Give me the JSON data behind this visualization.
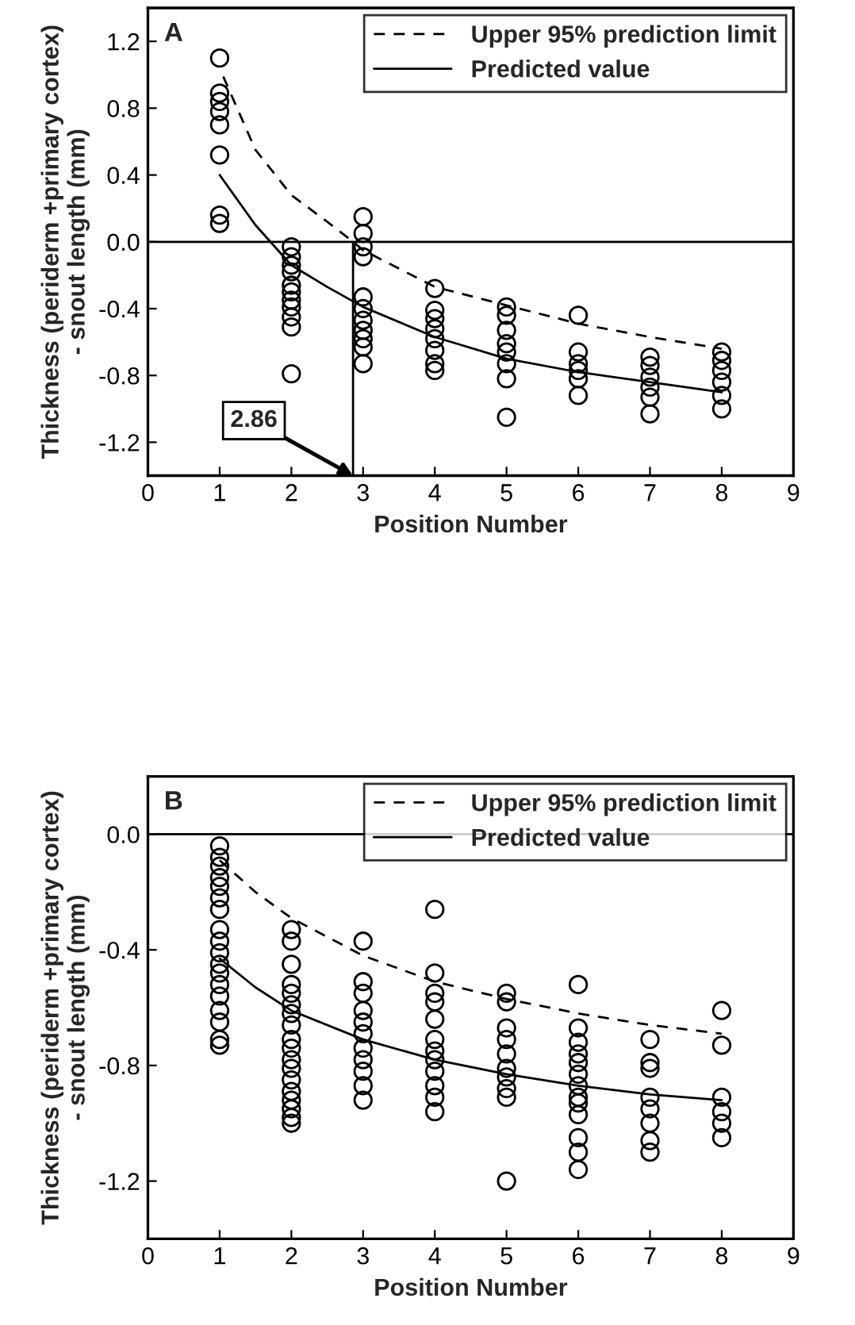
{
  "chart_data": [
    {
      "type": "scatter",
      "xlabel": "Position Number",
      "ylabel": "Thickness (periderm +primary cortex)\n- snout length (mm)",
      "xlim": [
        0,
        9
      ],
      "xticks": [
        0,
        1,
        2,
        3,
        4,
        5,
        6,
        7,
        8,
        9
      ],
      "ylim": [
        -1.4,
        1.4
      ],
      "yticks": [
        -1.2,
        -0.8,
        -0.4,
        {
          "value": 0,
          "label": "0.0"
        },
        0.4,
        0.8,
        1.2
      ],
      "legend": "top right",
      "grid": false,
      "annotations": [
        "A",
        {
          "text": "2.86",
          "x": 2.86,
          "y": -1.4
        }
      ],
      "ref_lines": [
        {
          "axis": "y",
          "value": 0,
          "label": null,
          "color": "#000000"
        },
        {
          "axis": "x",
          "value": 2.86,
          "label": null,
          "color": "#000000"
        }
      ],
      "series": [
        {
          "marker": "circle",
          "color": "#000000",
          "x": [
            1,
            1,
            1,
            1,
            1,
            1,
            1,
            1,
            2,
            2,
            2,
            2,
            2,
            2,
            2,
            2,
            2,
            2,
            2,
            3,
            3,
            3,
            3,
            3,
            3,
            3,
            3,
            3,
            3,
            3,
            4,
            4,
            4,
            4,
            4,
            4,
            4,
            4,
            5,
            5,
            5,
            5,
            5,
            5,
            5,
            5,
            6,
            6,
            6,
            6,
            6,
            6,
            7,
            7,
            7,
            7,
            7,
            7,
            8,
            8,
            8,
            8,
            8,
            8
          ],
          "values": [
            1.1,
            0.89,
            0.84,
            0.78,
            0.7,
            0.52,
            0.16,
            0.11,
            -0.03,
            -0.09,
            -0.14,
            -0.18,
            -0.26,
            -0.3,
            -0.35,
            -0.39,
            -0.45,
            -0.51,
            -0.79,
            0.15,
            0.05,
            -0.03,
            -0.09,
            -0.33,
            -0.4,
            -0.47,
            -0.53,
            -0.58,
            -0.63,
            -0.73,
            -0.28,
            -0.41,
            -0.46,
            -0.52,
            -0.58,
            -0.65,
            -0.73,
            -0.77,
            -0.39,
            -0.44,
            -0.53,
            -0.61,
            -0.66,
            -0.73,
            -0.82,
            -1.05,
            -0.44,
            -0.66,
            -0.73,
            -0.77,
            -0.82,
            -0.92,
            -0.69,
            -0.74,
            -0.81,
            -0.87,
            -0.93,
            -1.03,
            -0.66,
            -0.71,
            -0.77,
            -0.84,
            -0.92,
            -1.0
          ]
        },
        {
          "type": "line",
          "name": "Upper 95% prediction limit",
          "color": "#000000",
          "line_style": "dashed",
          "x": [
            1.05,
            1.5,
            2,
            2.5,
            2.86,
            3,
            4,
            5,
            6,
            7,
            8
          ],
          "values": [
            0.99,
            0.55,
            0.28,
            0.12,
            0.0,
            -0.05,
            -0.27,
            -0.38,
            -0.49,
            -0.57,
            -0.64
          ]
        },
        {
          "type": "line",
          "name": "Predicted value",
          "color": "#000000",
          "line_style": "solid",
          "x": [
            1,
            1.5,
            2,
            2.5,
            3,
            4,
            5,
            6,
            7,
            8
          ],
          "values": [
            0.4,
            0.1,
            -0.14,
            -0.27,
            -0.39,
            -0.57,
            -0.7,
            -0.78,
            -0.84,
            -0.9
          ]
        }
      ]
    },
    {
      "type": "scatter",
      "xlabel": "Position Number",
      "ylabel": "Thickness (periderm +primary cortex)\n- snout length (mm)",
      "xlim": [
        0,
        9
      ],
      "xticks": [
        0,
        1,
        2,
        3,
        4,
        5,
        6,
        7,
        8,
        9
      ],
      "ylim": [
        -1.4,
        0.2
      ],
      "yticks": [
        -1.2,
        -0.8,
        -0.4,
        {
          "value": 0,
          "label": "0.0"
        }
      ],
      "legend": "top right",
      "grid": false,
      "annotations": [
        "B"
      ],
      "ref_lines": [
        {
          "axis": "y",
          "value": 0,
          "label": null,
          "color": "#000000"
        }
      ],
      "series": [
        {
          "marker": "circle",
          "color": "#000000",
          "x": [
            1,
            1,
            1,
            1,
            1,
            1,
            1,
            1,
            1,
            1,
            1,
            1,
            1,
            1,
            1,
            1,
            1,
            1,
            2,
            2,
            2,
            2,
            2,
            2,
            2,
            2,
            2,
            2,
            2,
            2,
            2,
            2,
            2,
            2,
            2,
            2,
            3,
            3,
            3,
            3,
            3,
            3,
            3,
            3,
            3,
            3,
            3,
            4,
            4,
            4,
            4,
            4,
            4,
            4,
            4,
            4,
            4,
            4,
            4,
            5,
            5,
            5,
            5,
            5,
            5,
            5,
            5,
            5,
            5,
            6,
            6,
            6,
            6,
            6,
            6,
            6,
            6,
            6,
            6,
            6,
            6,
            6,
            7,
            7,
            7,
            7,
            7,
            7,
            7,
            7,
            8,
            8,
            8,
            8,
            8,
            8
          ],
          "values": [
            -0.04,
            -0.08,
            -0.11,
            -0.15,
            -0.18,
            -0.22,
            -0.26,
            -0.33,
            -0.37,
            -0.41,
            -0.45,
            -0.48,
            -0.52,
            -0.56,
            -0.61,
            -0.65,
            -0.71,
            -0.73,
            -0.33,
            -0.37,
            -0.45,
            -0.52,
            -0.55,
            -0.59,
            -0.62,
            -0.66,
            -0.71,
            -0.74,
            -0.78,
            -0.81,
            -0.85,
            -0.89,
            -0.92,
            -0.95,
            -0.98,
            -1.0,
            -0.37,
            -0.51,
            -0.55,
            -0.61,
            -0.65,
            -0.69,
            -0.74,
            -0.78,
            -0.82,
            -0.87,
            -0.92,
            -0.26,
            -0.48,
            -0.55,
            -0.58,
            -0.64,
            -0.71,
            -0.75,
            -0.78,
            -0.82,
            -0.87,
            -0.91,
            -0.96,
            -0.55,
            -0.58,
            -0.67,
            -0.71,
            -0.76,
            -0.81,
            -0.84,
            -0.88,
            -0.91,
            -1.2,
            -0.52,
            -0.67,
            -0.72,
            -0.76,
            -0.79,
            -0.83,
            -0.87,
            -0.91,
            -0.93,
            -0.97,
            -1.05,
            -1.1,
            -1.16,
            -0.71,
            -0.79,
            -0.81,
            -0.91,
            -0.95,
            -1.0,
            -1.06,
            -1.1,
            -0.61,
            -0.73,
            -0.91,
            -0.96,
            -1.0,
            -1.05
          ]
        },
        {
          "type": "line",
          "name": "Upper 95% prediction limit",
          "color": "#000000",
          "line_style": "dashed",
          "x": [
            1,
            1.5,
            2,
            3,
            4,
            5,
            6,
            7,
            8
          ],
          "values": [
            -0.09,
            -0.2,
            -0.29,
            -0.42,
            -0.51,
            -0.57,
            -0.62,
            -0.66,
            -0.69
          ]
        },
        {
          "type": "line",
          "name": "Predicted value",
          "color": "#000000",
          "line_style": "solid",
          "x": [
            1,
            1.5,
            2,
            3,
            4,
            5,
            6,
            7,
            8
          ],
          "values": [
            -0.43,
            -0.53,
            -0.61,
            -0.71,
            -0.78,
            -0.83,
            -0.87,
            -0.9,
            -0.92
          ]
        }
      ]
    }
  ]
}
